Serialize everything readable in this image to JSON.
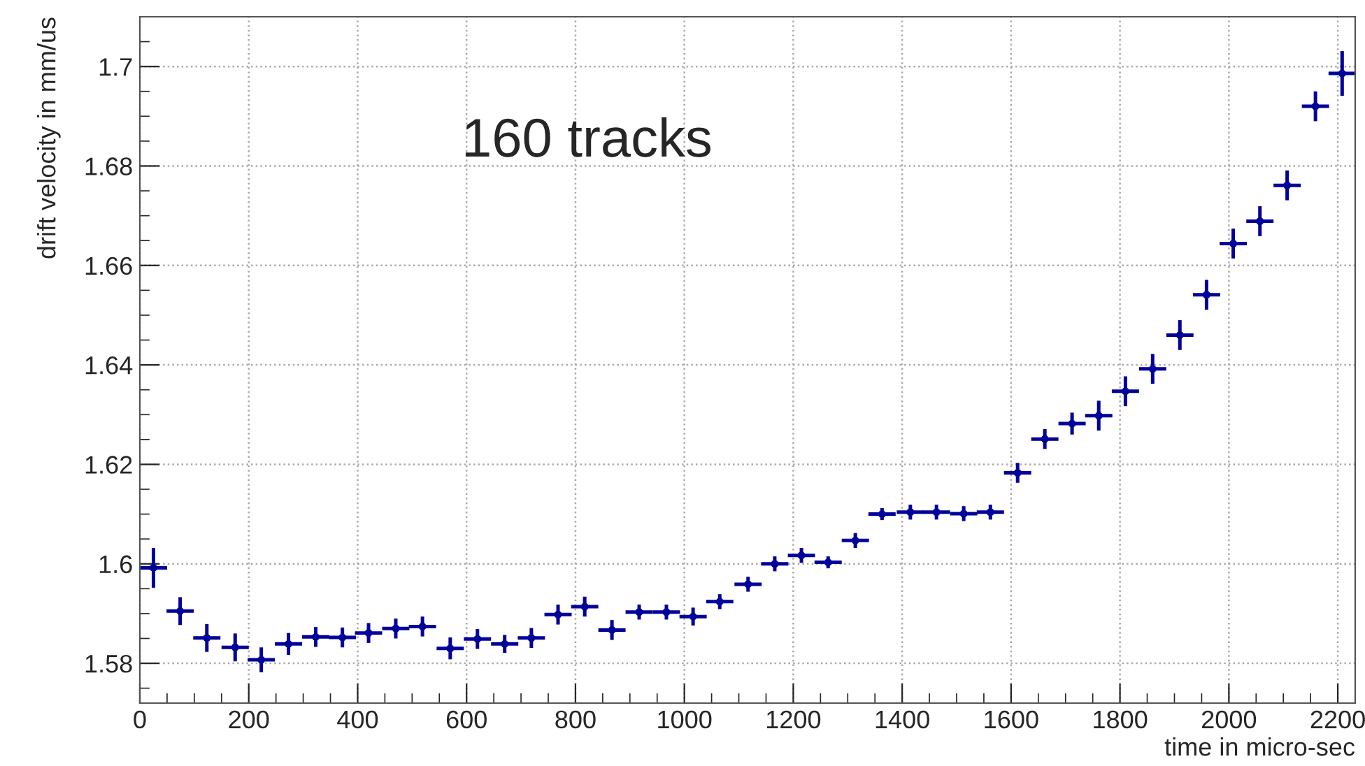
{
  "chart_data": {
    "type": "scatter",
    "xlabel": "time in micro-sec",
    "ylabel": "drift velocity in mm/us",
    "annotations": [
      "160 tracks"
    ],
    "x": [
      25,
      74,
      123,
      175,
      223,
      273,
      323,
      372,
      420,
      470,
      519,
      570,
      620,
      670,
      719,
      768,
      817,
      867,
      917,
      967,
      1016,
      1065,
      1117,
      1166,
      1215,
      1264,
      1314,
      1363,
      1415,
      1463,
      1513,
      1562,
      1612,
      1662,
      1712,
      1761,
      1810,
      1860,
      1910,
      1959,
      2008,
      2057,
      2107,
      2159,
      2208
    ],
    "series": [
      {
        "color": "#00009a",
        "values": [
          1.5992,
          1.5905,
          1.5851,
          1.5832,
          1.5807,
          1.5839,
          1.5853,
          1.5852,
          1.5861,
          1.587,
          1.5874,
          1.583,
          1.5849,
          1.5839,
          1.5851,
          1.5898,
          1.5914,
          1.5867,
          1.5903,
          1.5903,
          1.5894,
          1.5924,
          1.5959,
          1.6,
          1.6017,
          1.6003,
          1.6047,
          1.61,
          1.6104,
          1.6104,
          1.6101,
          1.6104,
          1.6183,
          1.6251,
          1.6282,
          1.6298,
          1.6347,
          1.6392,
          1.646,
          1.6541,
          1.6644,
          1.6689,
          1.6761,
          1.692,
          1.6986
        ],
        "errors": [
          0.004,
          0.0028,
          0.0028,
          0.0028,
          0.0025,
          0.0022,
          0.002,
          0.002,
          0.002,
          0.002,
          0.002,
          0.0022,
          0.002,
          0.0018,
          0.002,
          0.002,
          0.002,
          0.002,
          0.0015,
          0.0015,
          0.0018,
          0.0015,
          0.0015,
          0.0015,
          0.0015,
          0.0012,
          0.0015,
          0.0012,
          0.0015,
          0.0015,
          0.0015,
          0.0015,
          0.002,
          0.002,
          0.0022,
          0.003,
          0.003,
          0.003,
          0.003,
          0.003,
          0.003,
          0.003,
          0.003,
          0.003,
          0.0045
        ],
        "xerrors": [
          25,
          25,
          25,
          25,
          25,
          25,
          25,
          25,
          25,
          25,
          25,
          25,
          25,
          25,
          25,
          25,
          25,
          25,
          25,
          25,
          25,
          25,
          25,
          25,
          25,
          25,
          25,
          25,
          25,
          25,
          25,
          25,
          25,
          25,
          25,
          25,
          25,
          25,
          25,
          25,
          25,
          25,
          25,
          25,
          25
        ]
      }
    ],
    "grid": true,
    "xlim": [
      0,
      2232
    ],
    "xticks": [
      0,
      200,
      400,
      600,
      800,
      1000,
      1200,
      1400,
      1600,
      1800,
      2000,
      2200
    ],
    "ylim": [
      1.572,
      1.71
    ],
    "yticks": [
      1.58,
      1.6,
      1.62,
      1.64,
      1.66,
      1.68,
      1.7
    ]
  }
}
